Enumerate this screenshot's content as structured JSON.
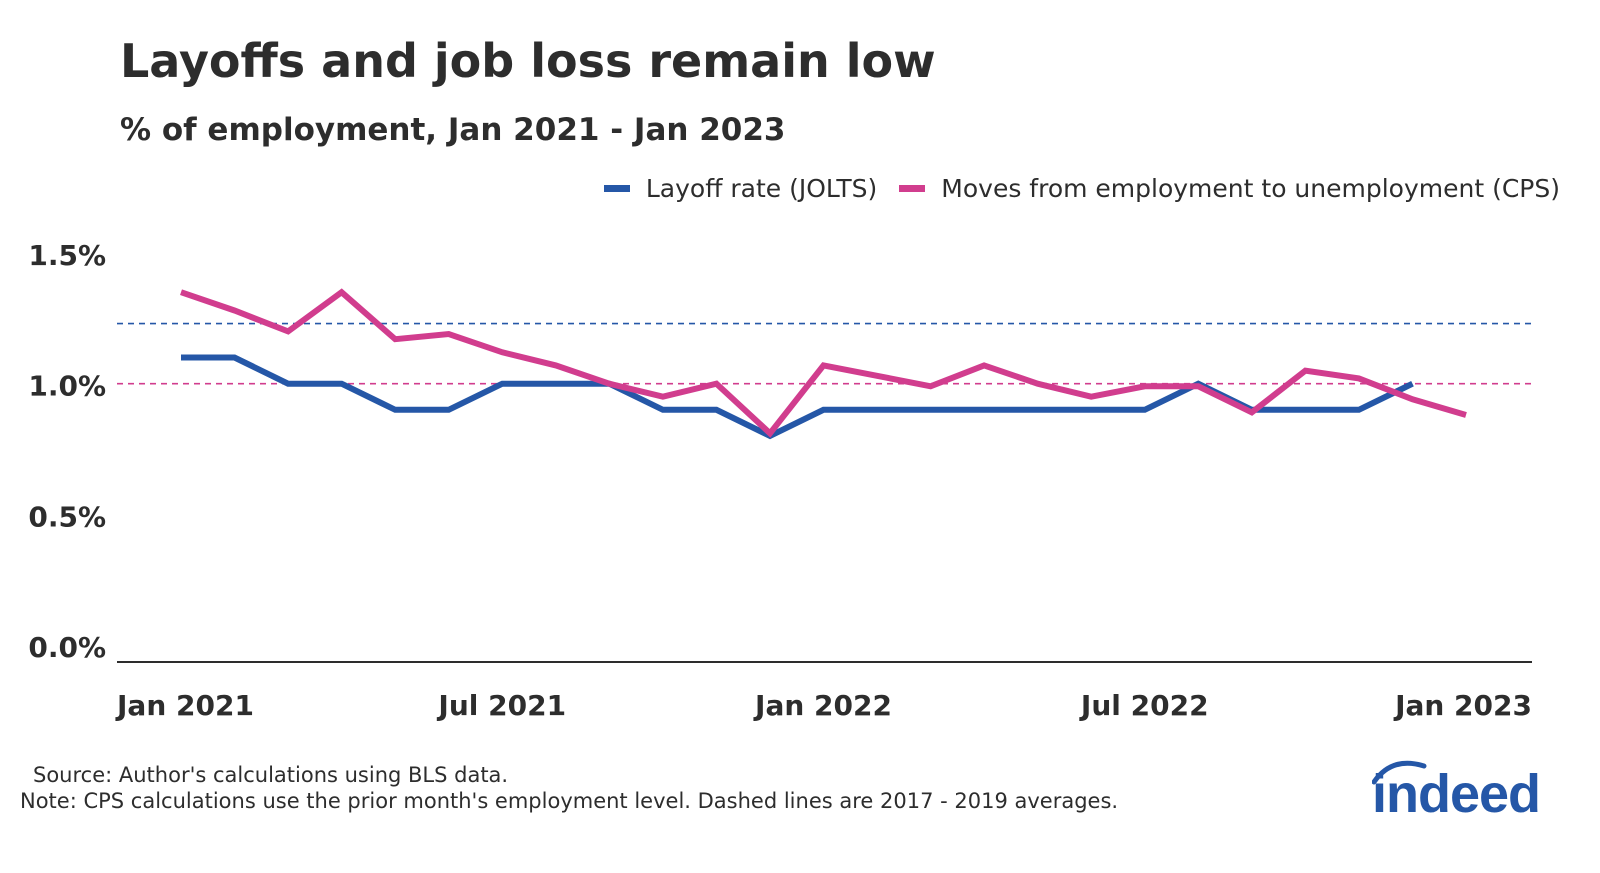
{
  "title": "Layoffs and job loss remain low",
  "subtitle": "% of employment, Jan 2021 - Jan 2023",
  "source": "Source: Author's calculations using BLS data.",
  "note": "Note: CPS calculations use the prior month's employment level. Dashed lines are 2017 - 2019 averages.",
  "logo_text": "indeed",
  "colors": {
    "jolts": "#2557a7",
    "cps": "#d13d8e",
    "axis": "#2d2d2d",
    "text": "#2d2d2d"
  },
  "chart_data": {
    "type": "line",
    "title": "Layoffs and job loss remain low",
    "subtitle": "% of employment, Jan 2021 - Jan 2023",
    "ylim": [
      0,
      1.5
    ],
    "y_ticks": [
      0.0,
      0.5,
      1.0,
      1.5
    ],
    "y_tick_labels": [
      "0.0%",
      "0.5%",
      "1.0%",
      "1.5%"
    ],
    "x_start": "2021-01",
    "x_end": "2023-01",
    "x_ticks": [
      "2021-01",
      "2021-07",
      "2022-01",
      "2022-07",
      "2023-01"
    ],
    "x_tick_labels": [
      "Jan 2021",
      "Jul 2021",
      "Jan 2022",
      "Jul 2022",
      "Jan 2023"
    ],
    "legend_position": "top-right",
    "grid": false,
    "series": [
      {
        "name": "Layoff rate (JOLTS)",
        "color": "#2557a7",
        "x": [
          "2021-01",
          "2021-02",
          "2021-03",
          "2021-04",
          "2021-05",
          "2021-06",
          "2021-07",
          "2021-08",
          "2021-09",
          "2021-10",
          "2021-11",
          "2021-12",
          "2022-01",
          "2022-02",
          "2022-03",
          "2022-04",
          "2022-05",
          "2022-06",
          "2022-07",
          "2022-08",
          "2022-09",
          "2022-10",
          "2022-11",
          "2022-12"
        ],
        "values": [
          1.1,
          1.1,
          1.0,
          1.0,
          0.9,
          0.9,
          1.0,
          1.0,
          1.0,
          0.9,
          0.9,
          0.8,
          0.9,
          0.9,
          0.9,
          0.9,
          0.9,
          0.9,
          0.9,
          1.0,
          0.9,
          0.9,
          0.9,
          1.0
        ]
      },
      {
        "name": "Moves from employment to unemployment (CPS)",
        "color": "#d13d8e",
        "x": [
          "2021-01",
          "2021-02",
          "2021-03",
          "2021-04",
          "2021-05",
          "2021-06",
          "2021-07",
          "2021-08",
          "2021-09",
          "2021-10",
          "2021-11",
          "2021-12",
          "2022-01",
          "2022-02",
          "2022-03",
          "2022-04",
          "2022-05",
          "2022-06",
          "2022-07",
          "2022-08",
          "2022-09",
          "2022-10",
          "2022-11",
          "2022-12",
          "2023-01"
        ],
        "values": [
          1.35,
          1.28,
          1.2,
          1.35,
          1.17,
          1.19,
          1.12,
          1.07,
          1.0,
          0.95,
          1.0,
          0.81,
          1.07,
          1.03,
          0.99,
          1.07,
          1.0,
          0.95,
          0.99,
          0.99,
          0.89,
          1.05,
          1.02,
          0.94,
          0.88
        ]
      }
    ],
    "reference_lines": [
      {
        "series": "Layoff rate (JOLTS)",
        "label": "2017 - 2019 average",
        "value": 1.23,
        "color": "#2557a7",
        "style": "dashed"
      },
      {
        "series": "Moves from employment to unemployment (CPS)",
        "label": "2017 - 2019 average",
        "value": 1.0,
        "color": "#d13d8e",
        "style": "dashed"
      }
    ]
  }
}
